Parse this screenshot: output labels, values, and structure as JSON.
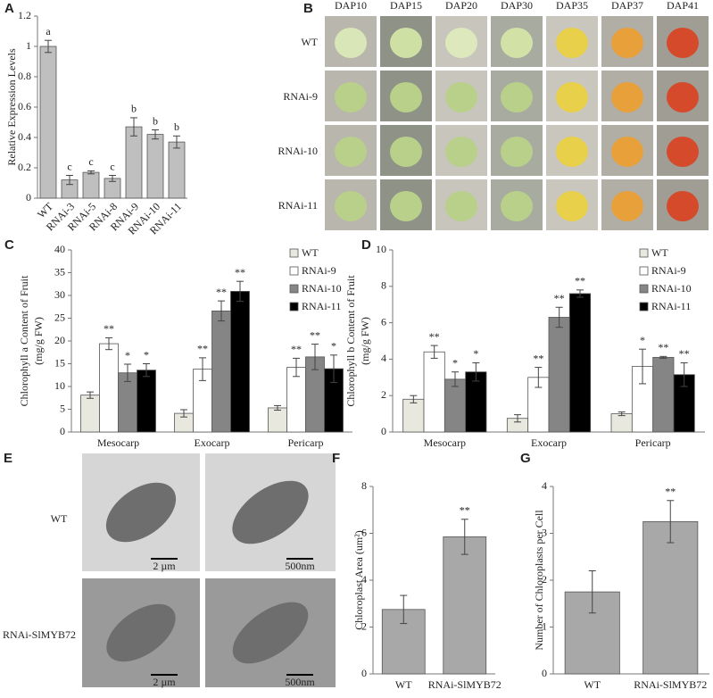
{
  "panel_b": {
    "label": "B",
    "columns": [
      "DAP10",
      "DAP15",
      "DAP20",
      "DAP30",
      "DAP35",
      "DAP37",
      "DAP41"
    ],
    "rows": [
      "WT",
      "RNAi-9",
      "RNAi-10",
      "RNAi-11"
    ]
  },
  "panel_e": {
    "label": "E",
    "rows": [
      "WT",
      "RNAi-SlMYB72"
    ],
    "scale_bars": [
      "2 µm",
      "500nm",
      "2 µm",
      "500nm"
    ]
  },
  "chart_data": [
    {
      "type": "bar",
      "label": "A",
      "ylabel": [
        "Relative Expression Levels"
      ],
      "categories": [
        "WT",
        "RNAi-3",
        "RNAi-5",
        "RNAi-8",
        "RNAi-9",
        "RNAi-10",
        "RNAi-11"
      ],
      "values": [
        1.0,
        0.12,
        0.17,
        0.13,
        0.47,
        0.42,
        0.37
      ],
      "errors": [
        0.04,
        0.03,
        0.01,
        0.02,
        0.06,
        0.03,
        0.04
      ],
      "annotations": [
        "a",
        "c",
        "c",
        "c",
        "b",
        "b",
        "b"
      ],
      "color": "#bfbfbf",
      "ylim": [
        0,
        1.2
      ],
      "yticks": [
        0,
        0.2,
        0.4,
        0.6,
        0.8,
        1,
        1.2
      ]
    },
    {
      "type": "bar",
      "label": "C",
      "ylabel": [
        "Chlorophyll a Content of Fruit",
        "(mg/g FW)"
      ],
      "categories": [
        "Mesocarp",
        "Exocarp",
        "Pericarp"
      ],
      "series": [
        {
          "name": "WT",
          "color": "#e8e8df",
          "values": [
            8.1,
            4.1,
            5.3
          ],
          "errors": [
            0.7,
            0.8,
            0.5
          ],
          "significance": [
            null,
            null,
            null
          ]
        },
        {
          "name": "RNAi-9",
          "color": "#ffffff",
          "values": [
            19.4,
            13.8,
            14.2
          ],
          "errors": [
            1.3,
            2.5,
            2.0
          ],
          "significance": [
            "**",
            "**",
            "**"
          ]
        },
        {
          "name": "RNAi-10",
          "color": "#858585",
          "values": [
            13.0,
            26.6,
            16.5
          ],
          "errors": [
            1.9,
            2.2,
            2.8
          ],
          "significance": [
            "*",
            "**",
            "**"
          ]
        },
        {
          "name": "RNAi-11",
          "color": "#000000",
          "values": [
            13.6,
            30.9,
            13.9
          ],
          "errors": [
            1.4,
            2.2,
            3.0
          ],
          "significance": [
            "*",
            "**",
            "*"
          ]
        }
      ],
      "ylim": [
        0,
        40
      ],
      "yticks": [
        0,
        5,
        10,
        15,
        20,
        25,
        30,
        35,
        40
      ],
      "legend": "upper right"
    },
    {
      "type": "bar",
      "label": "D",
      "ylabel": [
        "Chlorophyll b Content of Fruit",
        "(mg/g FW)"
      ],
      "categories": [
        "Mesocarp",
        "Exocarp",
        "Pericarp"
      ],
      "series": [
        {
          "name": "WT",
          "color": "#e8e8df",
          "values": [
            1.8,
            0.75,
            1.0
          ],
          "errors": [
            0.2,
            0.2,
            0.1
          ],
          "significance": [
            null,
            null,
            null
          ]
        },
        {
          "name": "RNAi-9",
          "color": "#ffffff",
          "values": [
            4.4,
            3.0,
            3.6
          ],
          "errors": [
            0.35,
            0.55,
            0.95
          ],
          "significance": [
            "**",
            "**",
            "*"
          ]
        },
        {
          "name": "RNAi-10",
          "color": "#858585",
          "values": [
            2.9,
            6.3,
            4.1
          ],
          "errors": [
            0.4,
            0.55,
            0.05
          ],
          "significance": [
            "*",
            "**",
            "**"
          ]
        },
        {
          "name": "RNAi-11",
          "color": "#000000",
          "values": [
            3.3,
            7.6,
            3.15
          ],
          "errors": [
            0.5,
            0.2,
            0.65
          ],
          "significance": [
            "*",
            "**",
            "**"
          ]
        }
      ],
      "ylim": [
        0,
        10
      ],
      "yticks": [
        0,
        2,
        4,
        6,
        8,
        10
      ],
      "legend": "upper right"
    },
    {
      "type": "bar",
      "label": "F",
      "ylabel": [
        "Chloroplast Area (um²)"
      ],
      "categories": [
        "WT",
        "RNAi-SlMYB72"
      ],
      "values": [
        2.75,
        5.85
      ],
      "errors": [
        0.6,
        0.75
      ],
      "annotations": [
        null,
        "**"
      ],
      "color": "#a8a8a8",
      "ylim": [
        0,
        8
      ],
      "yticks": [
        0,
        2,
        4,
        6,
        8
      ]
    },
    {
      "type": "bar",
      "label": "G",
      "ylabel": [
        "Number of Chloroplasts per Cell"
      ],
      "categories": [
        "WT",
        "RNAi-SlMYB72"
      ],
      "values": [
        1.75,
        3.25
      ],
      "errors": [
        0.45,
        0.45
      ],
      "annotations": [
        null,
        "**"
      ],
      "color": "#a8a8a8",
      "ylim": [
        0,
        4
      ],
      "yticks": [
        0,
        1,
        2,
        3,
        4
      ]
    }
  ]
}
